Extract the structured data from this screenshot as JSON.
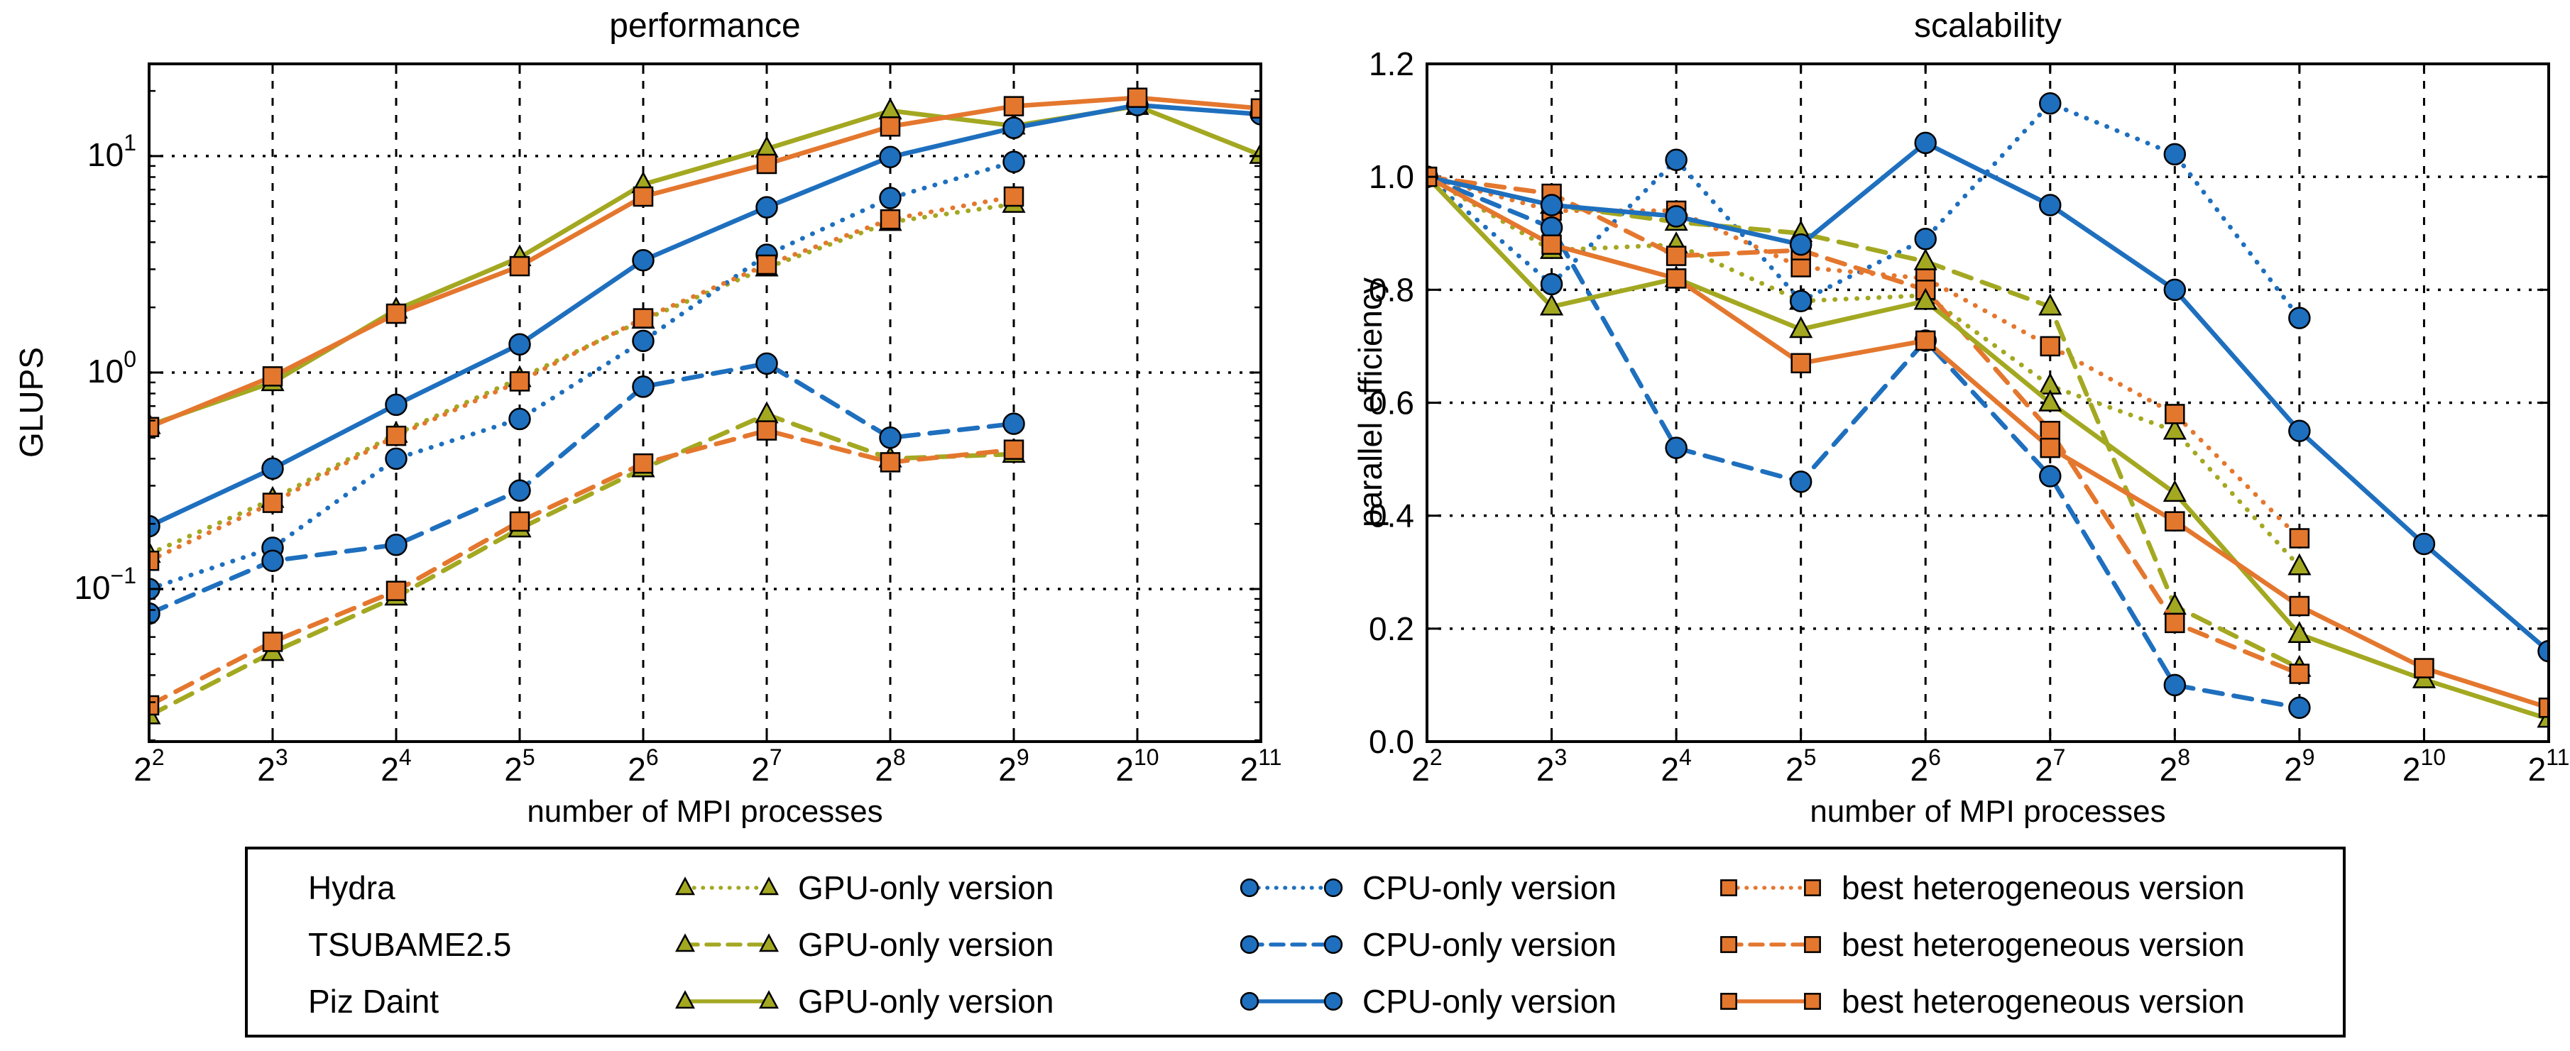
{
  "page": {
    "background": "#ffffff"
  },
  "colors": {
    "gpu": "#a3a821",
    "cpu": "#1e6fbe",
    "het": "#e4772e",
    "axis": "#000000",
    "grid": "#000000"
  },
  "chart_data": [
    {
      "type": "line",
      "title": "performance",
      "xlabel": "number of MPI processes",
      "ylabel": "GLUPS",
      "x_tick_exponents": [
        2,
        3,
        4,
        5,
        6,
        7,
        8,
        9,
        10,
        11
      ],
      "y_scale": "log10",
      "y_tick_exponents": [
        1,
        0,
        -1
      ],
      "ylim_log10": [
        -1.705,
        1.426
      ],
      "grid": true,
      "legend_position": "bottom-shared",
      "series": [
        {
          "machine": "Hydra",
          "version": "GPU-only version",
          "color_key": "gpu",
          "marker": "triangle",
          "linestyle": "dotted",
          "values": [
            0.145,
            0.26,
            0.52,
            0.94,
            1.75,
            3.05,
            4.95,
            6.0
          ]
        },
        {
          "machine": "Hydra",
          "version": "CPU-only version",
          "color_key": "cpu",
          "marker": "circle",
          "linestyle": "dotted",
          "values": [
            0.1,
            0.155,
            0.4,
            0.61,
            1.4,
            3.5,
            6.4,
            9.4
          ]
        },
        {
          "machine": "Hydra",
          "version": "best heterogeneous version",
          "color_key": "het",
          "marker": "square",
          "linestyle": "dotted",
          "values": [
            0.135,
            0.25,
            0.51,
            0.91,
            1.78,
            3.15,
            5.1,
            6.5
          ]
        },
        {
          "machine": "TSUBAME2.5",
          "version": "GPU-only version",
          "color_key": "gpu",
          "marker": "triangle",
          "linestyle": "dashed",
          "values": [
            0.026,
            0.051,
            0.092,
            0.19,
            0.36,
            0.64,
            0.4,
            0.42
          ]
        },
        {
          "machine": "TSUBAME2.5",
          "version": "CPU-only version",
          "color_key": "cpu",
          "marker": "circle",
          "linestyle": "dashed",
          "values": [
            0.077,
            0.135,
            0.16,
            0.285,
            0.86,
            1.1,
            0.5,
            0.58
          ]
        },
        {
          "machine": "TSUBAME2.5",
          "version": "best heterogeneous version",
          "color_key": "het",
          "marker": "square",
          "linestyle": "dashed",
          "values": [
            0.029,
            0.057,
            0.098,
            0.205,
            0.38,
            0.54,
            0.385,
            0.44
          ]
        },
        {
          "machine": "Piz Daint",
          "version": "GPU-only version",
          "color_key": "gpu",
          "marker": "triangle",
          "linestyle": "solid",
          "values": [
            0.57,
            0.9,
            1.95,
            3.4,
            7.4,
            10.8,
            16.2,
            13.8,
            17.0,
            10.1
          ]
        },
        {
          "machine": "Piz Daint",
          "version": "CPU-only version",
          "color_key": "cpu",
          "marker": "circle",
          "linestyle": "solid",
          "values": [
            0.195,
            0.36,
            0.71,
            1.35,
            3.3,
            5.8,
            9.9,
            13.5,
            17.2,
            15.6
          ]
        },
        {
          "machine": "Piz Daint",
          "version": "best heterogeneous version",
          "color_key": "het",
          "marker": "square",
          "linestyle": "solid",
          "values": [
            0.56,
            0.96,
            1.87,
            3.1,
            6.5,
            9.2,
            13.7,
            17.0,
            18.6,
            16.6
          ]
        }
      ]
    },
    {
      "type": "line",
      "title": "scalability",
      "xlabel": "number of MPI processes",
      "ylabel": "parallel efficiency",
      "x_tick_exponents": [
        2,
        3,
        4,
        5,
        6,
        7,
        8,
        9,
        10,
        11
      ],
      "y_scale": "linear",
      "y_ticks": [
        "0.0",
        "0.2",
        "0.4",
        "0.6",
        "0.8",
        "1.0",
        "1.2"
      ],
      "ylim": [
        0.0,
        1.2
      ],
      "grid": true,
      "series": [
        {
          "machine": "Hydra",
          "version": "GPU-only version",
          "color_key": "gpu",
          "marker": "triangle",
          "linestyle": "dotted",
          "values": [
            1.0,
            0.87,
            0.88,
            0.78,
            0.79,
            0.63,
            0.55,
            0.31
          ]
        },
        {
          "machine": "Hydra",
          "version": "CPU-only version",
          "color_key": "cpu",
          "marker": "circle",
          "linestyle": "dotted",
          "values": [
            1.0,
            0.81,
            1.03,
            0.78,
            0.89,
            1.13,
            1.04,
            0.75
          ]
        },
        {
          "machine": "Hydra",
          "version": "best heterogeneous version",
          "color_key": "het",
          "marker": "square",
          "linestyle": "dotted",
          "values": [
            1.0,
            0.94,
            0.94,
            0.84,
            0.82,
            0.7,
            0.58,
            0.36
          ]
        },
        {
          "machine": "TSUBAME2.5",
          "version": "GPU-only version",
          "color_key": "gpu",
          "marker": "triangle",
          "linestyle": "dashed",
          "values": [
            1.0,
            0.95,
            0.92,
            0.9,
            0.85,
            0.77,
            0.24,
            0.13
          ]
        },
        {
          "machine": "TSUBAME2.5",
          "version": "CPU-only version",
          "color_key": "cpu",
          "marker": "circle",
          "linestyle": "dashed",
          "values": [
            1.0,
            0.91,
            0.52,
            0.46,
            0.71,
            0.47,
            0.1,
            0.06
          ]
        },
        {
          "machine": "TSUBAME2.5",
          "version": "best heterogeneous version",
          "color_key": "het",
          "marker": "square",
          "linestyle": "dashed",
          "values": [
            1.0,
            0.97,
            0.86,
            0.87,
            0.8,
            0.55,
            0.21,
            0.12
          ]
        },
        {
          "machine": "Piz Daint",
          "version": "GPU-only version",
          "color_key": "gpu",
          "marker": "triangle",
          "linestyle": "solid",
          "values": [
            1.0,
            0.77,
            0.82,
            0.73,
            0.78,
            0.6,
            0.44,
            0.19,
            0.11,
            0.04
          ]
        },
        {
          "machine": "Piz Daint",
          "version": "CPU-only version",
          "color_key": "cpu",
          "marker": "circle",
          "linestyle": "solid",
          "values": [
            1.0,
            0.95,
            0.93,
            0.88,
            1.06,
            0.95,
            0.8,
            0.55,
            0.35,
            0.16
          ]
        },
        {
          "machine": "Piz Daint",
          "version": "best heterogeneous version",
          "color_key": "het",
          "marker": "square",
          "linestyle": "solid",
          "values": [
            1.0,
            0.88,
            0.82,
            0.67,
            0.71,
            0.52,
            0.39,
            0.24,
            0.13,
            0.06
          ]
        }
      ]
    }
  ],
  "legend": {
    "rows": [
      {
        "system": "Hydra",
        "linestyle": "dotted",
        "entries": [
          {
            "label": "GPU-only version",
            "marker": "triangle",
            "color_key": "gpu"
          },
          {
            "label": "CPU-only version",
            "marker": "circle",
            "color_key": "cpu"
          },
          {
            "label": "best heterogeneous version",
            "marker": "square",
            "color_key": "het"
          }
        ]
      },
      {
        "system": "TSUBAME2.5",
        "linestyle": "dashed",
        "entries": [
          {
            "label": "GPU-only version",
            "marker": "triangle",
            "color_key": "gpu"
          },
          {
            "label": "CPU-only version",
            "marker": "circle",
            "color_key": "cpu"
          },
          {
            "label": "best heterogeneous version",
            "marker": "square",
            "color_key": "het"
          }
        ]
      },
      {
        "system": "Piz Daint",
        "linestyle": "solid",
        "entries": [
          {
            "label": "GPU-only version",
            "marker": "triangle",
            "color_key": "gpu"
          },
          {
            "label": "CPU-only version",
            "marker": "circle",
            "color_key": "cpu"
          },
          {
            "label": "best heterogeneous version",
            "marker": "square",
            "color_key": "het"
          }
        ]
      }
    ]
  }
}
